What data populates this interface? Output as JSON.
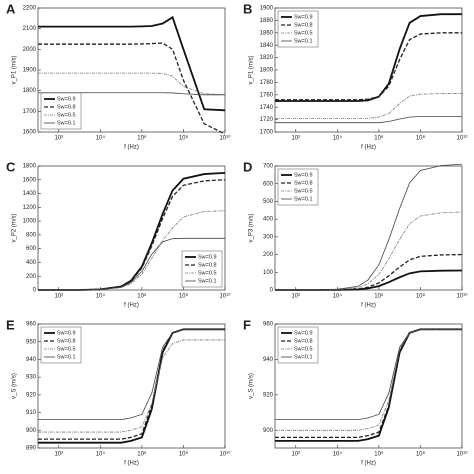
{
  "chart_data": [
    {
      "type": "line",
      "panel": "A",
      "xlabel": "f (Hz)",
      "ylabel": "v_P1 (m/s)",
      "xscale": "log",
      "x": [
        10,
        100,
        1000,
        10000,
        100000,
        300000,
        1000000,
        3000000,
        10000000,
        30000000,
        100000000,
        1000000000,
        10000000000
      ],
      "xlim": [
        10,
        10000000000
      ],
      "xticks": [
        {
          "value": 100,
          "label": "10²"
        },
        {
          "value": 10000,
          "label": "10⁴"
        },
        {
          "value": 1000000,
          "label": "10⁶"
        },
        {
          "value": 100000000,
          "label": "10⁸"
        },
        {
          "value": 10000000000,
          "label": "10¹⁰"
        }
      ],
      "ylim": [
        1600,
        2200
      ],
      "yticks": [
        1600,
        1700,
        1800,
        1900,
        2000,
        2100,
        2200
      ],
      "legend": "lower left",
      "series": [
        {
          "name": "Sw=0.9",
          "color": "#111111",
          "width": 1.8,
          "dash": "none",
          "values": [
            2110,
            2110,
            2110,
            2110,
            2110,
            2110,
            2111,
            2113,
            2125,
            2155,
            2000,
            1710,
            1705
          ]
        },
        {
          "name": "Sw=0.8",
          "color": "#222222",
          "width": 1.3,
          "dash": "4,2",
          "values": [
            2025,
            2025,
            2025,
            2025,
            2025,
            2025,
            2026,
            2028,
            2030,
            2000,
            1850,
            1640,
            1590
          ]
        },
        {
          "name": "Sw=0.5",
          "color": "#777777",
          "width": 0.8,
          "dash": "3,1,1,1",
          "values": [
            1885,
            1885,
            1885,
            1885,
            1885,
            1885,
            1885,
            1885,
            1883,
            1870,
            1820,
            1785,
            1780
          ]
        },
        {
          "name": "Sw=0.1",
          "color": "#444444",
          "width": 0.8,
          "dash": "none",
          "values": [
            1790,
            1790,
            1790,
            1790,
            1790,
            1790,
            1790,
            1790,
            1790,
            1789,
            1785,
            1780,
            1780
          ]
        }
      ]
    },
    {
      "type": "line",
      "panel": "B",
      "xlabel": "f (Hz)",
      "ylabel": "v_P1 (m/s)",
      "xscale": "log",
      "x": [
        10,
        100,
        1000,
        10000,
        100000,
        300000,
        1000000,
        3000000,
        10000000,
        30000000,
        100000000,
        1000000000,
        10000000000
      ],
      "xlim": [
        10,
        10000000000
      ],
      "xticks": [
        {
          "value": 100,
          "label": "10²"
        },
        {
          "value": 10000,
          "label": "10⁴"
        },
        {
          "value": 1000000,
          "label": "10⁶"
        },
        {
          "value": 100000000,
          "label": "10⁸"
        },
        {
          "value": 10000000000,
          "label": "10¹⁰"
        }
      ],
      "ylim": [
        1700,
        1900
      ],
      "yticks": [
        1700,
        1720,
        1740,
        1760,
        1780,
        1800,
        1820,
        1840,
        1860,
        1880,
        1900
      ],
      "legend": "upper left",
      "series": [
        {
          "name": "Sw=0.9",
          "color": "#111111",
          "width": 1.8,
          "dash": "none",
          "values": [
            1750,
            1750,
            1750,
            1750,
            1750,
            1751,
            1757,
            1778,
            1834,
            1876,
            1887,
            1890,
            1890
          ]
        },
        {
          "name": "Sw=0.8",
          "color": "#222222",
          "width": 1.3,
          "dash": "4,2",
          "values": [
            1752,
            1752,
            1752,
            1752,
            1752,
            1753,
            1757,
            1774,
            1817,
            1849,
            1858,
            1860,
            1860
          ]
        },
        {
          "name": "Sw=0.5",
          "color": "#777777",
          "width": 0.8,
          "dash": "3,1,1,1",
          "values": [
            1722,
            1722,
            1722,
            1722,
            1722,
            1722,
            1724,
            1730,
            1746,
            1758,
            1761,
            1762,
            1762
          ]
        },
        {
          "name": "Sw=0.1",
          "color": "#444444",
          "width": 0.8,
          "dash": "none",
          "values": [
            1715,
            1715,
            1715,
            1715,
            1715,
            1715,
            1715,
            1717,
            1721,
            1724,
            1725,
            1725,
            1725
          ]
        }
      ]
    },
    {
      "type": "line",
      "panel": "C",
      "xlabel": "f (Hz)",
      "ylabel": "v_P2 (m/s)",
      "xscale": "log",
      "x": [
        10,
        100,
        1000,
        10000,
        100000,
        300000,
        1000000,
        3000000,
        10000000,
        30000000,
        100000000,
        1000000000,
        10000000000
      ],
      "xlim": [
        10,
        10000000000
      ],
      "xticks": [
        {
          "value": 100,
          "label": "10²"
        },
        {
          "value": 10000,
          "label": "10⁴"
        },
        {
          "value": 1000000,
          "label": "10⁶"
        },
        {
          "value": 100000000,
          "label": "10⁸"
        },
        {
          "value": 10000000000,
          "label": "10¹⁰"
        }
      ],
      "ylim": [
        0,
        1800
      ],
      "yticks": [
        0,
        200,
        400,
        600,
        800,
        1000,
        1200,
        1400,
        1600,
        1800
      ],
      "legend": "lower right",
      "series": [
        {
          "name": "Sw=0.9",
          "color": "#111111",
          "width": 1.8,
          "dash": "none",
          "values": [
            0,
            0,
            0,
            9,
            51,
            136,
            340,
            680,
            1105,
            1445,
            1615,
            1683,
            1700
          ]
        },
        {
          "name": "Sw=0.8",
          "color": "#222222",
          "width": 1.3,
          "dash": "4,2",
          "values": [
            0,
            0,
            0,
            8,
            48,
            128,
            320,
            640,
            1040,
            1360,
            1520,
            1584,
            1600
          ]
        },
        {
          "name": "Sw=0.5",
          "color": "#777777",
          "width": 0.8,
          "dash": "3,1,1,1",
          "values": [
            0,
            0,
            0,
            6,
            35,
            92,
            230,
            460,
            720,
            900,
            1060,
            1140,
            1150
          ]
        },
        {
          "name": "Sw=0.1",
          "color": "#444444",
          "width": 0.8,
          "dash": "none",
          "values": [
            0,
            0,
            0,
            6,
            40,
            110,
            270,
            520,
            700,
            745,
            750,
            750,
            750
          ]
        }
      ]
    },
    {
      "type": "line",
      "panel": "D",
      "xlabel": "f (Hz)",
      "ylabel": "v_P3 (m/s)",
      "xscale": "log",
      "x": [
        10,
        100,
        1000,
        10000,
        100000,
        300000,
        1000000,
        3000000,
        10000000,
        30000000,
        100000000,
        1000000000,
        10000000000
      ],
      "xlim": [
        10,
        10000000000
      ],
      "xticks": [
        {
          "value": 100,
          "label": "10²"
        },
        {
          "value": 10000,
          "label": "10⁴"
        },
        {
          "value": 1000000,
          "label": "10⁶"
        },
        {
          "value": 100000000,
          "label": "10⁸"
        },
        {
          "value": 10000000000,
          "label": "10¹⁰"
        }
      ],
      "ylim": [
        0,
        700
      ],
      "yticks": [
        0,
        100,
        200,
        300,
        400,
        500,
        600,
        700
      ],
      "legend": "upper left",
      "series": [
        {
          "name": "Sw=0.9",
          "color": "#111111",
          "width": 1.8,
          "dash": "none",
          "values": [
            0,
            0,
            0,
            1,
            3,
            9,
            22,
            44,
            72,
            94,
            105,
            109,
            110
          ]
        },
        {
          "name": "Sw=0.8",
          "color": "#222222",
          "width": 1.3,
          "dash": "4,2",
          "values": [
            0,
            0,
            0,
            1,
            6,
            16,
            40,
            80,
            130,
            170,
            190,
            198,
            200
          ]
        },
        {
          "name": "Sw=0.5",
          "color": "#777777",
          "width": 0.8,
          "dash": "3,1,1,1",
          "values": [
            0,
            0,
            0,
            2,
            13,
            35,
            88,
            176,
            286,
            374,
            418,
            436,
            440
          ]
        },
        {
          "name": "Sw=0.1",
          "color": "#444444",
          "width": 0.8,
          "dash": "none",
          "values": [
            0,
            0,
            0,
            4,
            21,
            57,
            142,
            284,
            461,
            604,
            675,
            703,
            710
          ]
        }
      ]
    },
    {
      "type": "line",
      "panel": "E",
      "xlabel": "f (Hz)",
      "ylabel": "v_S (m/s)",
      "xscale": "log",
      "x": [
        10,
        100,
        1000,
        10000,
        100000,
        300000,
        1000000,
        3000000,
        10000000,
        30000000,
        100000000,
        1000000000,
        10000000000
      ],
      "xlim": [
        10,
        10000000000
      ],
      "xticks": [
        {
          "value": 100,
          "label": "10²"
        },
        {
          "value": 10000,
          "label": "10⁴"
        },
        {
          "value": 1000000,
          "label": "10⁶"
        },
        {
          "value": 100000000,
          "label": "10⁸"
        },
        {
          "value": 10000000000,
          "label": "10¹⁰"
        }
      ],
      "ylim": [
        890,
        960
      ],
      "yticks": [
        890,
        900,
        910,
        920,
        930,
        940,
        950,
        960
      ],
      "legend": "upper left",
      "series": [
        {
          "name": "Sw=0.9",
          "color": "#111111",
          "width": 1.8,
          "dash": "none",
          "values": [
            893,
            893,
            893,
            893,
            893,
            894,
            896,
            912,
            944,
            955,
            957,
            957,
            957
          ]
        },
        {
          "name": "Sw=0.8",
          "color": "#222222",
          "width": 1.3,
          "dash": "4,2",
          "values": [
            895,
            895,
            895,
            895,
            895,
            896,
            898,
            914,
            945,
            955,
            957,
            957,
            957
          ]
        },
        {
          "name": "Sw=0.5",
          "color": "#777777",
          "width": 0.8,
          "dash": "3,1,1,1",
          "values": [
            899,
            899,
            899,
            899,
            899,
            900,
            902,
            915,
            941,
            949,
            951,
            951,
            951
          ]
        },
        {
          "name": "Sw=0.1",
          "color": "#444444",
          "width": 0.8,
          "dash": "none",
          "values": [
            906,
            906,
            906,
            906,
            906,
            907,
            909,
            921,
            947,
            955,
            957,
            957,
            957
          ]
        }
      ]
    },
    {
      "type": "line",
      "panel": "F",
      "xlabel": "f (Hz)",
      "ylabel": "v_S (m/s)",
      "xscale": "log",
      "x": [
        10,
        100,
        1000,
        10000,
        100000,
        300000,
        1000000,
        3000000,
        10000000,
        30000000,
        100000000,
        1000000000,
        10000000000
      ],
      "xlim": [
        10,
        10000000000
      ],
      "xticks": [
        {
          "value": 100,
          "label": "10²"
        },
        {
          "value": 10000,
          "label": "10⁴"
        },
        {
          "value": 1000000,
          "label": "10⁶"
        },
        {
          "value": 100000000,
          "label": "10⁸"
        },
        {
          "value": 10000000000,
          "label": "10¹⁰"
        }
      ],
      "ylim": [
        890,
        960
      ],
      "yticks": [
        900,
        920,
        940,
        960
      ],
      "legend": "upper left",
      "series": [
        {
          "name": "Sw=0.9",
          "color": "#111111",
          "width": 1.8,
          "dash": "none",
          "values": [
            894,
            894,
            894,
            894,
            894,
            895,
            897,
            913,
            944,
            955,
            957,
            957,
            957
          ]
        },
        {
          "name": "Sw=0.8",
          "color": "#222222",
          "width": 1.3,
          "dash": "4,2",
          "values": [
            896,
            896,
            896,
            896,
            896,
            897,
            899,
            914,
            945,
            955,
            957,
            957,
            957
          ]
        },
        {
          "name": "Sw=0.5",
          "color": "#777777",
          "width": 0.8,
          "dash": "3,1,1,1",
          "values": [
            900,
            900,
            900,
            900,
            900,
            901,
            903,
            917,
            946,
            955,
            957,
            957,
            957
          ]
        },
        {
          "name": "Sw=0.1",
          "color": "#444444",
          "width": 0.8,
          "dash": "none",
          "values": [
            906,
            906,
            906,
            906,
            906,
            907,
            909,
            921,
            947,
            955,
            957,
            957,
            957
          ]
        }
      ]
    }
  ]
}
